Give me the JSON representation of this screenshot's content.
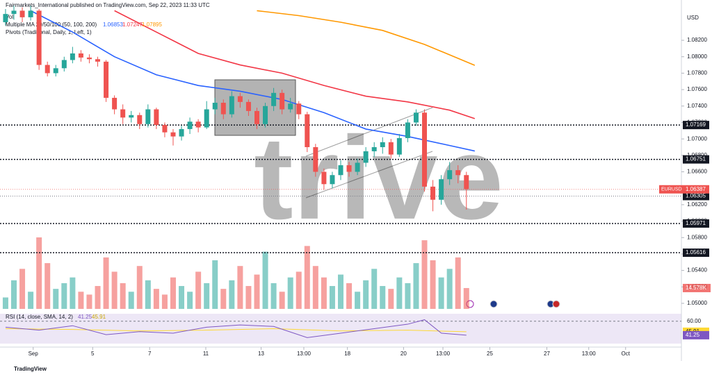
{
  "chart_data": {
    "type": "candlestick",
    "title": "Fairmarkets_International published on TradingView.com, Sep 22, 2023 11:33 UTC",
    "volume_legend": "Vol",
    "ma_legend": "Multiple MA 20/50/100 (50, 100, 200)",
    "pivots_legend": "Pivots (Traditional, Daily, 1, Left, 1)",
    "rsi_legend": "RSI (14, close, SMA, 14, 2)",
    "currency": "USD",
    "symbol": "EURUSD",
    "watermark": "trive",
    "brand": "TradingView",
    "up_color": "#26a69a",
    "down_color": "#ef5350",
    "ylim": [
      1.04924,
      1.0869
    ],
    "yticks": [
      {
        "value": 1.05,
        "label": "1.05000"
      },
      {
        "value": 1.052,
        "label": "1.05200"
      },
      {
        "value": 1.054,
        "label": "1.05400"
      },
      {
        "value": 1.056,
        "label": "1.05600"
      },
      {
        "value": 1.058,
        "label": "1.05800"
      },
      {
        "value": 1.06,
        "label": "1.06000"
      },
      {
        "value": 1.062,
        "label": "1.06200"
      },
      {
        "value": 1.064,
        "label": "1.06400"
      },
      {
        "value": 1.066,
        "label": "1.06600"
      },
      {
        "value": 1.068,
        "label": "1.06800"
      },
      {
        "value": 1.07,
        "label": "1.07000"
      },
      {
        "value": 1.072,
        "label": "1.07200"
      },
      {
        "value": 1.074,
        "label": "1.07400"
      },
      {
        "value": 1.076,
        "label": "1.07600"
      },
      {
        "value": 1.078,
        "label": "1.07800"
      },
      {
        "value": 1.08,
        "label": "1.08000"
      },
      {
        "value": 1.082,
        "label": "1.08200"
      }
    ],
    "xlim": [
      -0.66,
      80.66
    ],
    "xticks": [
      {
        "value": 3.3,
        "label": "Sep"
      },
      {
        "value": 10.4,
        "label": "5"
      },
      {
        "value": 17.2,
        "label": "7"
      },
      {
        "value": 23.9,
        "label": "11"
      },
      {
        "value": 30.5,
        "label": "13"
      },
      {
        "value": 35.6,
        "label": "13:00"
      },
      {
        "value": 40.8,
        "label": "18"
      },
      {
        "value": 47.5,
        "label": "20"
      },
      {
        "value": 52.2,
        "label": "13:00"
      },
      {
        "value": 57.8,
        "label": "25"
      },
      {
        "value": 64.6,
        "label": "27"
      },
      {
        "value": 69.6,
        "label": "13:00"
      },
      {
        "value": 74.0,
        "label": "Oct"
      }
    ],
    "ohlc": [
      [
        1.0842,
        1.0858,
        1.0838,
        1.0852
      ],
      [
        1.0852,
        1.0862,
        1.0845,
        1.0856
      ],
      [
        1.0856,
        1.086,
        1.0842,
        1.0848
      ],
      [
        1.0848,
        1.0862,
        1.0844,
        1.0856
      ],
      [
        1.0856,
        1.0858,
        1.0784,
        1.079
      ],
      [
        1.079,
        1.0794,
        1.0776,
        1.078
      ],
      [
        1.078,
        1.079,
        1.0776,
        1.0786
      ],
      [
        1.0786,
        1.08,
        1.0782,
        1.0796
      ],
      [
        1.0796,
        1.0812,
        1.0792,
        1.0804
      ],
      [
        1.0804,
        1.0808,
        1.0794,
        1.0799
      ],
      [
        1.0799,
        1.0803,
        1.0792,
        1.0797
      ],
      [
        1.0797,
        1.08,
        1.0788,
        1.0794
      ],
      [
        1.0794,
        1.0796,
        1.0745,
        1.075
      ],
      [
        1.075,
        1.0753,
        1.073,
        1.0736
      ],
      [
        1.0736,
        1.0742,
        1.0718,
        1.0726
      ],
      [
        1.0726,
        1.0734,
        1.072,
        1.0729
      ],
      [
        1.0729,
        1.0732,
        1.0712,
        1.0718
      ],
      [
        1.0718,
        1.0742,
        1.0714,
        1.0736
      ],
      [
        1.0736,
        1.0738,
        1.0712,
        1.0717
      ],
      [
        1.0717,
        1.072,
        1.0702,
        1.0708
      ],
      [
        1.0708,
        1.0712,
        1.0692,
        1.0703
      ],
      [
        1.0703,
        1.0716,
        1.0698,
        1.0712
      ],
      [
        1.0712,
        1.0726,
        1.0706,
        1.0721
      ],
      [
        1.0721,
        1.0724,
        1.0708,
        1.0714
      ],
      [
        1.0714,
        1.0746,
        1.0712,
        1.0736
      ],
      [
        1.0736,
        1.075,
        1.073,
        1.0744
      ],
      [
        1.0744,
        1.0748,
        1.0724,
        1.073
      ],
      [
        1.073,
        1.0758,
        1.0726,
        1.0752
      ],
      [
        1.0752,
        1.0756,
        1.0738,
        1.0745
      ],
      [
        1.0745,
        1.0748,
        1.0728,
        1.0734
      ],
      [
        1.0734,
        1.0738,
        1.0712,
        1.0718
      ],
      [
        1.0718,
        1.0744,
        1.0714,
        1.074
      ],
      [
        1.074,
        1.0762,
        1.0734,
        1.0756
      ],
      [
        1.0756,
        1.076,
        1.073,
        1.0736
      ],
      [
        1.0736,
        1.075,
        1.0732,
        1.0743
      ],
      [
        1.0743,
        1.0746,
        1.0724,
        1.073
      ],
      [
        1.073,
        1.0733,
        1.0684,
        1.069
      ],
      [
        1.069,
        1.0694,
        1.0654,
        1.066
      ],
      [
        1.066,
        1.0664,
        1.0638,
        1.0645
      ],
      [
        1.0645,
        1.066,
        1.064,
        1.0656
      ],
      [
        1.0656,
        1.0674,
        1.065,
        1.0668
      ],
      [
        1.0668,
        1.0672,
        1.0654,
        1.066
      ],
      [
        1.066,
        1.0676,
        1.0656,
        1.0671
      ],
      [
        1.0671,
        1.069,
        1.0666,
        1.0685
      ],
      [
        1.0685,
        1.0696,
        1.0678,
        1.069
      ],
      [
        1.069,
        1.0702,
        1.0682,
        1.0696
      ],
      [
        1.0696,
        1.07,
        1.0676,
        1.0681
      ],
      [
        1.0681,
        1.0706,
        1.0678,
        1.0701
      ],
      [
        1.0701,
        1.0724,
        1.0696,
        1.072
      ],
      [
        1.072,
        1.0736,
        1.0716,
        1.0732
      ],
      [
        1.0732,
        1.0736,
        1.0636,
        1.0642
      ],
      [
        1.0642,
        1.065,
        1.0612,
        1.0626
      ],
      [
        1.0626,
        1.0656,
        1.062,
        1.0651
      ],
      [
        1.0651,
        1.0672,
        1.0644,
        1.0662
      ],
      [
        1.0662,
        1.0668,
        1.0646,
        1.0656
      ],
      [
        1.0656,
        1.066,
        1.0614,
        1.0639
      ]
    ],
    "volume": [
      8,
      20,
      28,
      12,
      50,
      32,
      14,
      18,
      22,
      12,
      10,
      16,
      36,
      26,
      18,
      12,
      30,
      20,
      14,
      10,
      22,
      16,
      12,
      26,
      18,
      34,
      14,
      20,
      30,
      16,
      24,
      40,
      18,
      12,
      22,
      26,
      44,
      30,
      22,
      16,
      24,
      18,
      12,
      20,
      28,
      16,
      14,
      22,
      18,
      32,
      48,
      34,
      22,
      28,
      36,
      14.578
    ],
    "volume_label": {
      "value": 14.578,
      "label": "14.578K"
    },
    "ma": [
      {
        "color": "#2962ff",
        "x": [
          3,
          8,
          13,
          18,
          23,
          28,
          33,
          38,
          43,
          48,
          53,
          56
        ],
        "values": [
          1.0856,
          1.083,
          1.08,
          1.0778,
          1.0765,
          1.0758,
          1.0748,
          1.0732,
          1.0712,
          1.0703,
          1.0692,
          1.06853
        ]
      },
      {
        "color": "#f23645",
        "x": [
          13,
          18,
          23,
          28,
          33,
          38,
          43,
          48,
          53,
          56
        ],
        "values": [
          1.0856,
          1.083,
          1.0804,
          1.079,
          1.078,
          1.0765,
          1.0752,
          1.0745,
          1.0735,
          1.07247
        ]
      },
      {
        "color": "#ff9800",
        "x": [
          30,
          35,
          40,
          45,
          50,
          56
        ],
        "values": [
          1.0856,
          1.085,
          1.0842,
          1.0832,
          1.0815,
          1.07895
        ]
      }
    ],
    "pivots": [
      1.07169,
      1.06751,
      1.05971,
      1.05616
    ],
    "last_close_level": 1.06305,
    "current_price": 1.06387,
    "rsi_ylim": [
      30,
      70
    ],
    "rsi_band": {
      "value": 60,
      "label": "60.00"
    },
    "rsi": {
      "color": "#7e57c2",
      "x": [
        0,
        4,
        8,
        12,
        16,
        20,
        24,
        28,
        32,
        36,
        40,
        44,
        48,
        50,
        52,
        55
      ],
      "values": [
        52,
        48,
        54,
        42,
        46,
        44,
        52,
        55,
        53,
        38,
        44,
        50,
        56,
        62,
        44,
        41.25
      ]
    },
    "rsi_signal": {
      "color": "#fdd835",
      "x": [
        0,
        8,
        16,
        24,
        32,
        40,
        48,
        55
      ],
      "values": [
        50,
        49,
        47,
        48,
        50,
        47,
        48,
        45.91
      ]
    }
  }
}
